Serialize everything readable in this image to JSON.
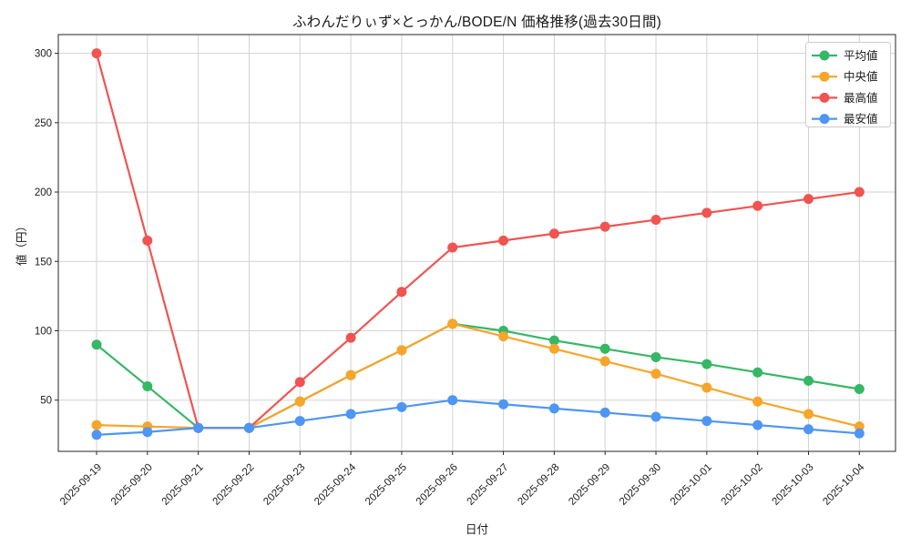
{
  "figure": {
    "title": "ふわんだりぃず×とっかん/BODE/N 価格推移(過去30日間)",
    "xlabel": "日付",
    "ylabel": "値（円）"
  },
  "colors": {
    "average": "#35b765",
    "median": "#f7a52b",
    "max": "#ef5452",
    "min": "#4e96f3",
    "gridline": "#d3d3d3",
    "spine": "#262626",
    "legend_border": "#cccccc",
    "background": "#ffffff",
    "text": "#1a1a1a"
  },
  "chart_data": {
    "type": "line",
    "title": "ふわんだりぃず×とっかん/BODE/N 価格推移(過去30日間)",
    "xlabel": "日付",
    "ylabel": "値（円）",
    "x": [
      "2025-09-19",
      "2025-09-20",
      "2025-09-21",
      "2025-09-22",
      "2025-09-23",
      "2025-09-24",
      "2025-09-25",
      "2025-09-26",
      "2025-09-27",
      "2025-09-28",
      "2025-09-29",
      "2025-09-30",
      "2025-10-01",
      "2025-10-02",
      "2025-10-03",
      "2025-10-04"
    ],
    "series": [
      {
        "name": "平均値",
        "color": "#35b765",
        "values": [
          90,
          60,
          30,
          30,
          49,
          68,
          86,
          105,
          100,
          93,
          87,
          81,
          76,
          70,
          64,
          58
        ]
      },
      {
        "name": "中央値",
        "color": "#f7a52b",
        "values": [
          32,
          31,
          30,
          30,
          49,
          68,
          86,
          105,
          96,
          87,
          78,
          69,
          59,
          49,
          40,
          31
        ]
      },
      {
        "name": "最高値",
        "color": "#ef5452",
        "values": [
          300,
          165,
          30,
          30,
          63,
          95,
          128,
          160,
          165,
          170,
          175,
          180,
          185,
          190,
          195,
          200
        ]
      },
      {
        "name": "最安値",
        "color": "#4e96f3",
        "values": [
          25,
          27,
          30,
          30,
          35,
          40,
          45,
          50,
          47,
          44,
          41,
          38,
          35,
          32,
          29,
          26
        ]
      }
    ],
    "yticks": [
      50,
      100,
      150,
      200,
      250,
      300
    ],
    "ylim": [
      13,
      314
    ],
    "grid": true,
    "legend_position": "upper right",
    "marker": "circle"
  }
}
